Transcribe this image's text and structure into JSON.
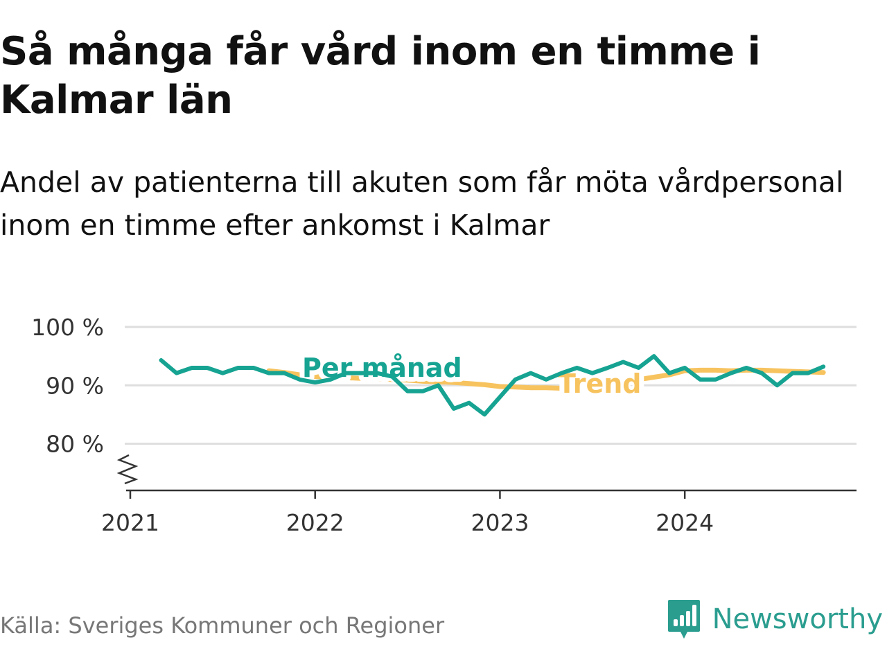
{
  "title": "Så många får vård inom en timme i Kalmar län",
  "subtitle": "Andel av patienterna till akuten som får möta vårdpersonal inom en timme efter ankomst i Kalmar",
  "source": "Källa: Sveriges Kommuner och Regioner",
  "brand": {
    "name": "Newsworthy",
    "icon": "newsworthy-logo-icon"
  },
  "colors": {
    "monthly": "#16a392",
    "trend": "#f7c35f",
    "grid": "#dedede",
    "axis": "#333333",
    "text": "#333333"
  },
  "chart_data": {
    "type": "line",
    "x_start": "2021-03",
    "x_step": "month",
    "xlim": [
      "2021-01",
      "2024-12"
    ],
    "ylim": [
      72,
      100
    ],
    "y_ticks": [
      80,
      90,
      100
    ],
    "y_tick_labels": [
      "80 %",
      "90 %",
      "100 %"
    ],
    "y_axis_broken": true,
    "x_tick_labels": [
      "2021",
      "2022",
      "2023",
      "2024"
    ],
    "grid": true,
    "series": [
      {
        "name": "Per månad",
        "values": [
          94.3,
          92.1,
          93.0,
          93.0,
          92.1,
          93.0,
          93.0,
          92.1,
          92.1,
          91.0,
          90.5,
          91.0,
          92.1,
          92.1,
          92.1,
          91.5,
          89.0,
          89.0,
          90.0,
          86.0,
          87.0,
          85.0,
          88.0,
          91.0,
          92.1,
          91.0,
          92.1,
          93.0,
          92.1,
          93.0,
          94.0,
          93.0,
          95.0,
          92.1,
          93.0,
          91.0,
          91.0,
          92.1,
          93.0,
          92.1,
          90.0,
          92.1,
          92.1,
          93.2
        ]
      },
      {
        "name": "Trend",
        "values": [
          null,
          null,
          null,
          null,
          null,
          null,
          null,
          92.5,
          92.2,
          91.8,
          91.5,
          91.4,
          91.3,
          91.2,
          91.1,
          91.0,
          90.9,
          90.7,
          90.6,
          90.5,
          90.3,
          90.1,
          89.8,
          89.7,
          89.6,
          89.6,
          89.5,
          89.5,
          89.8,
          90.2,
          90.6,
          91.0,
          91.4,
          91.8,
          92.5,
          92.6,
          92.6,
          92.5,
          92.6,
          92.6,
          92.5,
          92.4,
          92.3,
          92.2
        ]
      }
    ],
    "labels": {
      "monthly": "Per månad",
      "trend": "Trend"
    }
  }
}
